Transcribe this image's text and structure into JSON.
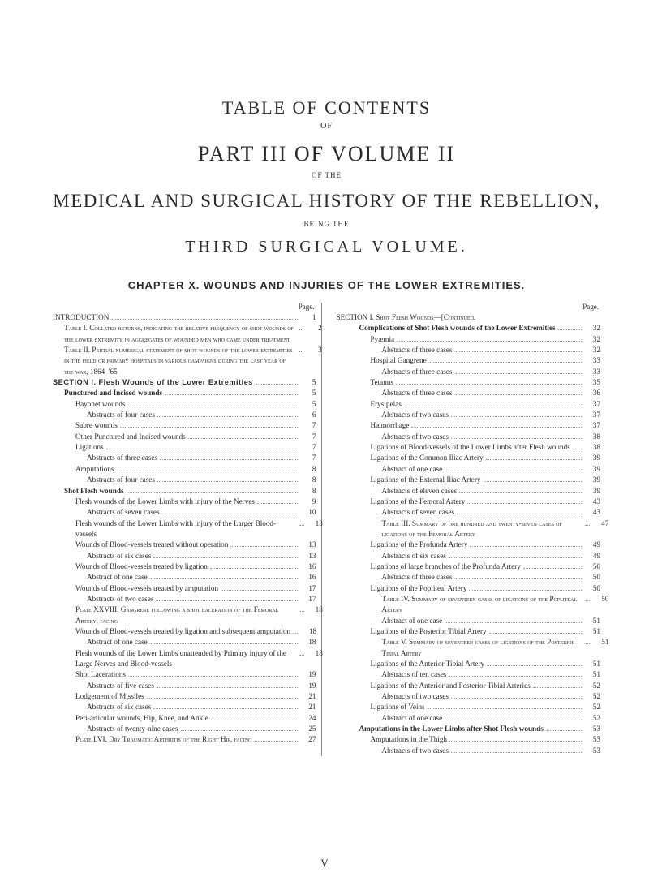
{
  "headings": {
    "toc": "TABLE OF CONTENTS",
    "of": "OF",
    "part": "PART III OF VOLUME II",
    "ofthe": "OF THE",
    "medical": "MEDICAL AND SURGICAL HISTORY OF THE REBELLION,",
    "being": "BEING THE",
    "third": "THIRD SURGICAL VOLUME.",
    "chapter": "CHAPTER X.  WOUNDS AND INJURIES OF THE LOWER EXTREMITIES."
  },
  "page_label": "Page.",
  "footer": "V",
  "left": [
    {
      "indent": 0,
      "style": "",
      "label": "INTRODUCTION",
      "page": "1"
    },
    {
      "indent": 1,
      "style": "sc",
      "label": "Table I.  Collated returns, indicating the relative frequency of shot wounds of the lower extremity in aggregates of wounded men who came under treatment",
      "page": "2"
    },
    {
      "indent": 1,
      "style": "sc",
      "label": "Table II.  Partial numerical statement of shot wounds of the lower extremities in the field or primary hospitals in various campaigns during the last year of the war, 1864–'65",
      "page": "3"
    },
    {
      "indent": 0,
      "style": "sans-bold",
      "label": "SECTION I.  Flesh Wounds of the Lower Extremities",
      "page": "5"
    },
    {
      "indent": 1,
      "style": "bold",
      "label": "Punctured and Incised wounds",
      "page": "5"
    },
    {
      "indent": 2,
      "style": "",
      "label": "Bayonet wounds",
      "page": "5"
    },
    {
      "indent": 3,
      "style": "",
      "label": "Abstracts of four cases",
      "page": "6"
    },
    {
      "indent": 2,
      "style": "",
      "label": "Sabre wounds",
      "page": "7"
    },
    {
      "indent": 2,
      "style": "",
      "label": "Other Punctured and Incised wounds",
      "page": "7"
    },
    {
      "indent": 2,
      "style": "",
      "label": "Ligations",
      "page": "7"
    },
    {
      "indent": 3,
      "style": "",
      "label": "Abstracts of three cases",
      "page": "7"
    },
    {
      "indent": 2,
      "style": "",
      "label": "Amputations",
      "page": "8"
    },
    {
      "indent": 3,
      "style": "",
      "label": "Abstracts of four cases",
      "page": "8"
    },
    {
      "indent": 1,
      "style": "bold",
      "label": "Shot Flesh wounds",
      "page": "8"
    },
    {
      "indent": 2,
      "style": "",
      "label": "Flesh wounds of the Lower Limbs with injury of the Nerves",
      "page": "9"
    },
    {
      "indent": 3,
      "style": "",
      "label": "Abstracts of seven cases",
      "page": "10"
    },
    {
      "indent": 2,
      "style": "",
      "label": "Flesh wounds of the Lower Limbs with injury of the Larger Blood-vessels",
      "page": "13"
    },
    {
      "indent": 2,
      "style": "",
      "label": "Wounds of Blood-vessels treated without operation",
      "page": "13"
    },
    {
      "indent": 3,
      "style": "",
      "label": "Abstracts of six cases",
      "page": "13"
    },
    {
      "indent": 2,
      "style": "",
      "label": "Wounds of Blood-vessels treated by ligation",
      "page": "16"
    },
    {
      "indent": 3,
      "style": "",
      "label": "Abstract of one case",
      "page": "16"
    },
    {
      "indent": 2,
      "style": "",
      "label": "Wounds of Blood-vessels treated by amputation",
      "page": "17"
    },
    {
      "indent": 3,
      "style": "",
      "label": "Abstracts of two cases",
      "page": "17"
    },
    {
      "indent": 2,
      "style": "sc",
      "label": "Plate XXVIII.  Gangrene following a shot laceration of the Femoral Artery, facing",
      "page": "18"
    },
    {
      "indent": 2,
      "style": "",
      "label": "Wounds of Blood-vessels treated by ligation and subsequent amputation",
      "page": "18"
    },
    {
      "indent": 3,
      "style": "",
      "label": "Abstract of one case",
      "page": "18"
    },
    {
      "indent": 2,
      "style": "",
      "label": "Flesh wounds of the Lower Limbs unattended by Primary injury of the Large Nerves and Blood-vessels",
      "page": "18"
    },
    {
      "indent": 2,
      "style": "",
      "label": "Shot Lacerations",
      "page": "19"
    },
    {
      "indent": 3,
      "style": "",
      "label": "Abstracts of five cases",
      "page": "19"
    },
    {
      "indent": 2,
      "style": "",
      "label": "Lodgement of Missiles",
      "page": "21"
    },
    {
      "indent": 3,
      "style": "",
      "label": "Abstracts of six cases",
      "page": "21"
    },
    {
      "indent": 2,
      "style": "",
      "label": "Peri-articular wounds, Hip, Knee, and Ankle",
      "page": "24"
    },
    {
      "indent": 3,
      "style": "",
      "label": "Abstracts of twenty-nine cases",
      "page": "25"
    },
    {
      "indent": 2,
      "style": "sc",
      "label": "Plate LVI.  Dry Traumatic Arthritis of the Right Hip, facing",
      "page": "27"
    }
  ],
  "right": [
    {
      "indent": 0,
      "style": "sc",
      "label": "SECTION I.  Shot Flesh Wounds—[Continued.",
      "page": "",
      "nopg": true
    },
    {
      "indent": 2,
      "style": "bold",
      "label": "Complications of Shot Flesh wounds of the Lower Extremities",
      "page": "32"
    },
    {
      "indent": 3,
      "style": "",
      "label": "Pyæmia",
      "page": "32"
    },
    {
      "indent": 4,
      "style": "",
      "label": "Abstracts of three cases",
      "page": "32"
    },
    {
      "indent": 3,
      "style": "",
      "label": "Hospital Gangrene",
      "page": "33"
    },
    {
      "indent": 4,
      "style": "",
      "label": "Abstracts of three cases",
      "page": "33"
    },
    {
      "indent": 3,
      "style": "",
      "label": "Tetanus",
      "page": "35"
    },
    {
      "indent": 4,
      "style": "",
      "label": "Abstracts of three cases",
      "page": "36"
    },
    {
      "indent": 3,
      "style": "",
      "label": "Erysipelas",
      "page": "37"
    },
    {
      "indent": 4,
      "style": "",
      "label": "Abstracts of two cases",
      "page": "37"
    },
    {
      "indent": 3,
      "style": "",
      "label": "Hæmorrhage",
      "page": "37"
    },
    {
      "indent": 4,
      "style": "",
      "label": "Abstracts of two cases",
      "page": "38"
    },
    {
      "indent": 3,
      "style": "",
      "label": "Ligations of Blood-vessels of the Lower Limbs after Flesh wounds",
      "page": "38"
    },
    {
      "indent": 3,
      "style": "",
      "label": "Ligations of the Common Iliac Artery",
      "page": "39"
    },
    {
      "indent": 4,
      "style": "",
      "label": "Abstract of one case",
      "page": "39"
    },
    {
      "indent": 3,
      "style": "",
      "label": "Ligations of the External Iliac Artery",
      "page": "39"
    },
    {
      "indent": 4,
      "style": "",
      "label": "Abstracts of eleven cases",
      "page": "39"
    },
    {
      "indent": 3,
      "style": "",
      "label": "Ligations of the Femoral Artery",
      "page": "43"
    },
    {
      "indent": 4,
      "style": "",
      "label": "Abstracts of seven cases",
      "page": "43"
    },
    {
      "indent": 4,
      "style": "sc",
      "label": "Table III.  Summary of one hundred and twenty-seven cases of ligations of the Femoral Artery",
      "page": "47"
    },
    {
      "indent": 3,
      "style": "",
      "label": "Ligations of the Profunda Artery",
      "page": "49"
    },
    {
      "indent": 4,
      "style": "",
      "label": "Abstracts of six cases",
      "page": "49"
    },
    {
      "indent": 3,
      "style": "",
      "label": "Ligations of large branches of the Profunda Artery",
      "page": "50"
    },
    {
      "indent": 4,
      "style": "",
      "label": "Abstracts of three cases",
      "page": "50"
    },
    {
      "indent": 3,
      "style": "",
      "label": "Ligations of the Popliteal Artery",
      "page": "50"
    },
    {
      "indent": 4,
      "style": "sc",
      "label": "Table IV.  Summary of seventeen cases of ligations of the Popliteal Artery",
      "page": "50"
    },
    {
      "indent": 4,
      "style": "",
      "label": "Abstract of one case",
      "page": "51"
    },
    {
      "indent": 3,
      "style": "",
      "label": "Ligations of the Posterior Tibial Artery",
      "page": "51"
    },
    {
      "indent": 4,
      "style": "sc",
      "label": "Table V.  Summary of seventeen cases of ligations of the Posterior Tibial Artery",
      "page": "51"
    },
    {
      "indent": 3,
      "style": "",
      "label": "Ligations of the Anterior Tibial Artery",
      "page": "51"
    },
    {
      "indent": 4,
      "style": "",
      "label": "Abstracts of ten cases",
      "page": "51"
    },
    {
      "indent": 3,
      "style": "",
      "label": "Ligations of the Anterior and Posterior Tibial Arteries",
      "page": "52"
    },
    {
      "indent": 4,
      "style": "",
      "label": "Abstracts of two cases",
      "page": "52"
    },
    {
      "indent": 3,
      "style": "",
      "label": "Ligations of Veins",
      "page": "52"
    },
    {
      "indent": 4,
      "style": "",
      "label": "Abstract of one case",
      "page": "52"
    },
    {
      "indent": 2,
      "style": "bold",
      "label": "Amputations in the Lower Limbs after Shot Flesh wounds",
      "page": "53"
    },
    {
      "indent": 3,
      "style": "",
      "label": "Amputations in the Thigh",
      "page": "53"
    },
    {
      "indent": 4,
      "style": "",
      "label": "Abstracts of two cases",
      "page": "53"
    }
  ]
}
